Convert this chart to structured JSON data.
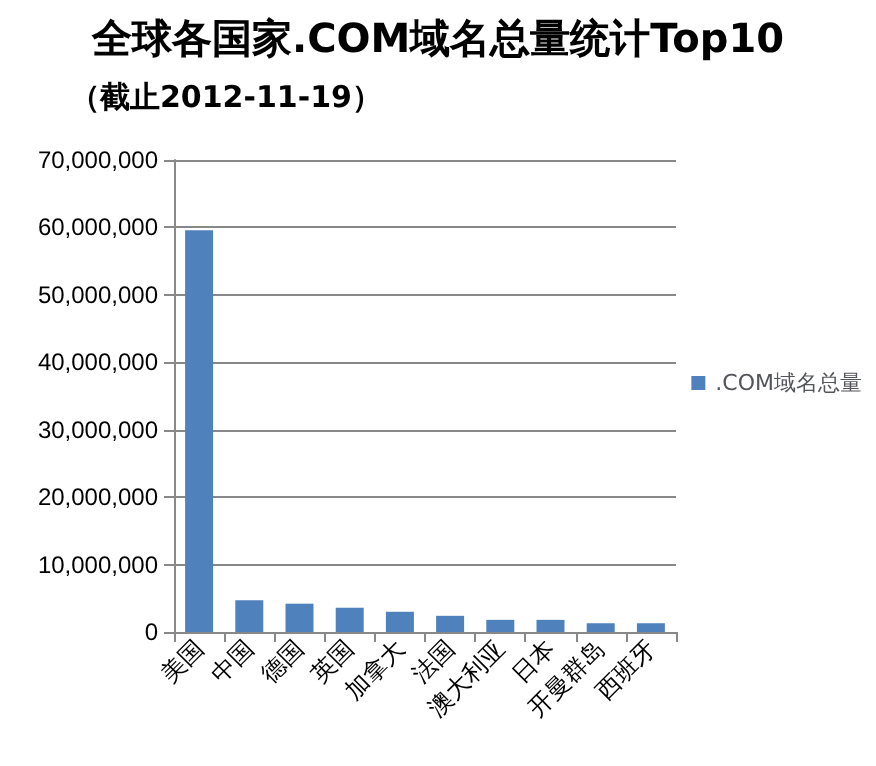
{
  "chart_data": {
    "type": "bar",
    "title": "全球各国家.COM域名总量统计Top10",
    "subtitle": "（截止2012-11-19）",
    "categories": [
      "美国",
      "中国",
      "德国",
      "英国",
      "加拿大",
      "法国",
      "澳大利亚",
      "日本",
      "开曼群岛",
      "西班牙"
    ],
    "series": [
      {
        "name": ".COM域名总量",
        "color": "#4f81bd",
        "values": [
          59600000,
          4700000,
          4200000,
          3600000,
          3000000,
          2400000,
          1800000,
          1800000,
          1300000,
          1300000
        ]
      }
    ],
    "ylim": [
      0,
      70000000
    ],
    "yticks": [
      0,
      {
        "value": 10000000,
        "label": "10,000,000"
      },
      {
        "value": 20000000,
        "label": "20,000,000"
      },
      {
        "value": 30000000,
        "label": "30,000,000"
      },
      {
        "value": 40000000,
        "label": "40,000,000"
      },
      {
        "value": 50000000,
        "label": "50,000,000"
      },
      {
        "value": 60000000,
        "label": "60,000,000"
      },
      {
        "value": 70000000,
        "label": "70,000,000"
      }
    ],
    "grid": "y",
    "legend": "right"
  }
}
